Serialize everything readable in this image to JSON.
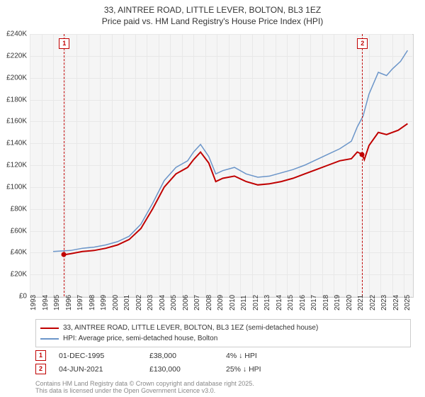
{
  "title_line1": "33, AINTREE ROAD, LITTLE LEVER, BOLTON, BL3 1EZ",
  "title_line2": "Price paid vs. HM Land Registry's House Price Index (HPI)",
  "chart": {
    "type": "line",
    "background_color": "#f5f5f5",
    "grid_color": "#e8e8e8",
    "border_color": "#d0d0d0",
    "ylim": [
      0,
      240000
    ],
    "ytick_step": 20000,
    "ytick_prefix": "£",
    "ytick_suffix": "K",
    "x_years": [
      1993,
      1994,
      1995,
      1996,
      1997,
      1998,
      1999,
      2000,
      2001,
      2002,
      2003,
      2004,
      2005,
      2006,
      2007,
      2008,
      2009,
      2010,
      2011,
      2012,
      2013,
      2014,
      2015,
      2016,
      2017,
      2018,
      2019,
      2020,
      2021,
      2022,
      2023,
      2024,
      2025
    ],
    "series": [
      {
        "name": "33, AINTREE ROAD, LITTLE LEVER, BOLTON, BL3 1EZ (semi-detached house)",
        "color": "#c00000",
        "line_width": 2,
        "values_by_year": {
          "1995.92": 38000,
          "1996.5": 39000,
          "1997.5": 41000,
          "1998.5": 42000,
          "1999.5": 44000,
          "2000.5": 47000,
          "2001.5": 52000,
          "2002.5": 62000,
          "2003.5": 80000,
          "2004.5": 100000,
          "2005.5": 112000,
          "2006.5": 118000,
          "2007.0": 125000,
          "2007.6": 132000,
          "2008.3": 122000,
          "2008.9": 105000,
          "2009.5": 108000,
          "2010.5": 110000,
          "2011.5": 105000,
          "2012.5": 102000,
          "2013.5": 103000,
          "2014.5": 105000,
          "2015.5": 108000,
          "2016.5": 112000,
          "2017.5": 116000,
          "2018.5": 120000,
          "2019.5": 124000,
          "2020.5": 126000,
          "2021.0": 132000,
          "2021.42": 130000,
          "2021.6": 125000,
          "2022.0": 138000,
          "2022.8": 150000,
          "2023.5": 148000,
          "2024.5": 152000,
          "2025.3": 158000
        }
      },
      {
        "name": "HPI: Average price, semi-detached house, Bolton",
        "color": "#6b95c9",
        "line_width": 1.5,
        "values_by_year": {
          "1995.0": 41000,
          "1996.5": 42000,
          "1997.5": 44000,
          "1998.5": 45000,
          "1999.5": 47000,
          "2000.5": 50000,
          "2001.5": 55000,
          "2002.5": 66000,
          "2003.5": 85000,
          "2004.5": 106000,
          "2005.5": 118000,
          "2006.5": 124000,
          "2007.0": 132000,
          "2007.6": 139000,
          "2008.3": 128000,
          "2008.9": 112000,
          "2009.5": 115000,
          "2010.5": 118000,
          "2011.5": 112000,
          "2012.5": 109000,
          "2013.5": 110000,
          "2014.5": 113000,
          "2015.5": 116000,
          "2016.5": 120000,
          "2017.5": 125000,
          "2018.5": 130000,
          "2019.5": 135000,
          "2020.5": 142000,
          "2021.0": 155000,
          "2021.5": 165000,
          "2022.0": 185000,
          "2022.8": 205000,
          "2023.5": 202000,
          "2024.0": 208000,
          "2024.7": 215000,
          "2025.3": 225000
        }
      }
    ],
    "markers": [
      {
        "id": "1",
        "year": 1995.92,
        "color": "#c00000",
        "price": 38000
      },
      {
        "id": "2",
        "year": 2021.42,
        "color": "#c00000",
        "price": 130000
      }
    ]
  },
  "legend": {
    "items": [
      {
        "color": "#c00000",
        "label": "33, AINTREE ROAD, LITTLE LEVER, BOLTON, BL3 1EZ (semi-detached house)"
      },
      {
        "color": "#6b95c9",
        "label": "HPI: Average price, semi-detached house, Bolton"
      }
    ]
  },
  "sales": [
    {
      "id": "1",
      "color": "#c00000",
      "date": "01-DEC-1995",
      "price": "£38,000",
      "delta": "4% ↓ HPI"
    },
    {
      "id": "2",
      "color": "#c00000",
      "date": "04-JUN-2021",
      "price": "£130,000",
      "delta": "25% ↓ HPI"
    }
  ],
  "footer_line1": "Contains HM Land Registry data © Crown copyright and database right 2025.",
  "footer_line2": "This data is licensed under the Open Government Licence v3.0."
}
